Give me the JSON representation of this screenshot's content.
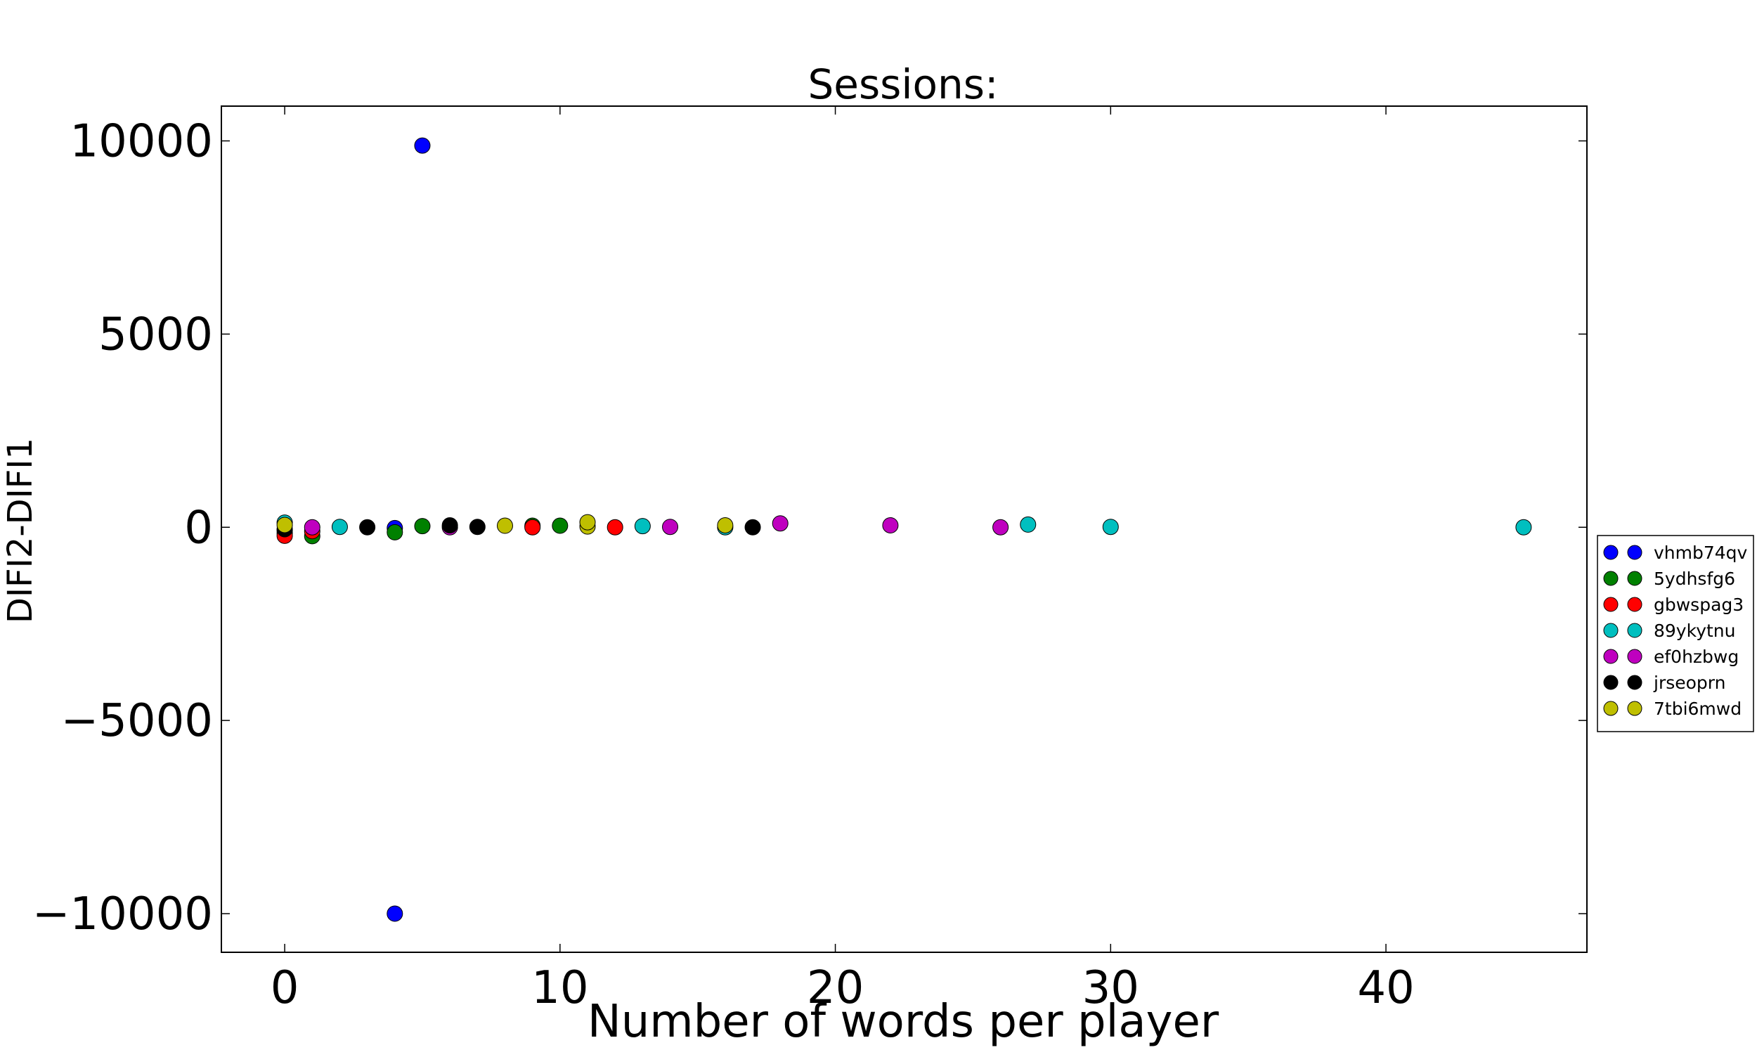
{
  "chart_data": {
    "type": "scatter",
    "title": "Sessions:",
    "xlabel": "Number of words per player",
    "ylabel": "DIFI2-DIFI1",
    "xlim": [
      -2.3,
      47.3
    ],
    "ylim": [
      -11000,
      10900
    ],
    "x_ticks": [
      0,
      10,
      20,
      30,
      40
    ],
    "x_tick_labels": [
      "0",
      "10",
      "20",
      "30",
      "40"
    ],
    "y_ticks": [
      10000,
      5000,
      0,
      -5000,
      -10000
    ],
    "y_tick_labels": [
      "10000",
      "5000",
      "0",
      "−5000",
      "−10000"
    ],
    "grid": false,
    "legend_position": "right",
    "series": [
      {
        "name": "vhmb74qv",
        "color": "#0000ff",
        "points": [
          [
            5,
            9880
          ],
          [
            4,
            -10000
          ],
          [
            4,
            -20
          ],
          [
            0,
            -80
          ]
        ]
      },
      {
        "name": "5ydhsfg6",
        "color": "#008000",
        "points": [
          [
            0,
            -150
          ],
          [
            1,
            -230
          ],
          [
            4,
            -130
          ],
          [
            5,
            30
          ],
          [
            9,
            40
          ],
          [
            10,
            40
          ]
        ]
      },
      {
        "name": "gbwspag3",
        "color": "#ff0000",
        "points": [
          [
            0,
            -220
          ],
          [
            1,
            -100
          ],
          [
            9,
            0
          ],
          [
            12,
            0
          ]
        ]
      },
      {
        "name": "89ykytnu",
        "color": "#00bfbf",
        "points": [
          [
            0,
            120
          ],
          [
            2,
            10
          ],
          [
            13,
            30
          ],
          [
            16,
            0
          ],
          [
            27,
            70
          ],
          [
            30,
            10
          ],
          [
            45,
            0
          ]
        ]
      },
      {
        "name": "ef0hzbwg",
        "color": "#bf00bf",
        "points": [
          [
            1,
            0
          ],
          [
            6,
            0
          ],
          [
            14,
            10
          ],
          [
            18,
            100
          ],
          [
            22,
            50
          ],
          [
            26,
            0
          ]
        ]
      },
      {
        "name": "jrseoprn",
        "color": "#000000",
        "points": [
          [
            0,
            -50
          ],
          [
            3,
            0
          ],
          [
            6,
            50
          ],
          [
            7,
            10
          ],
          [
            17,
            0
          ]
        ]
      },
      {
        "name": "7tbi6mwd",
        "color": "#bfbf00",
        "points": [
          [
            0,
            60
          ],
          [
            8,
            40
          ],
          [
            11,
            20
          ],
          [
            11,
            130
          ],
          [
            16,
            50
          ]
        ]
      }
    ]
  }
}
